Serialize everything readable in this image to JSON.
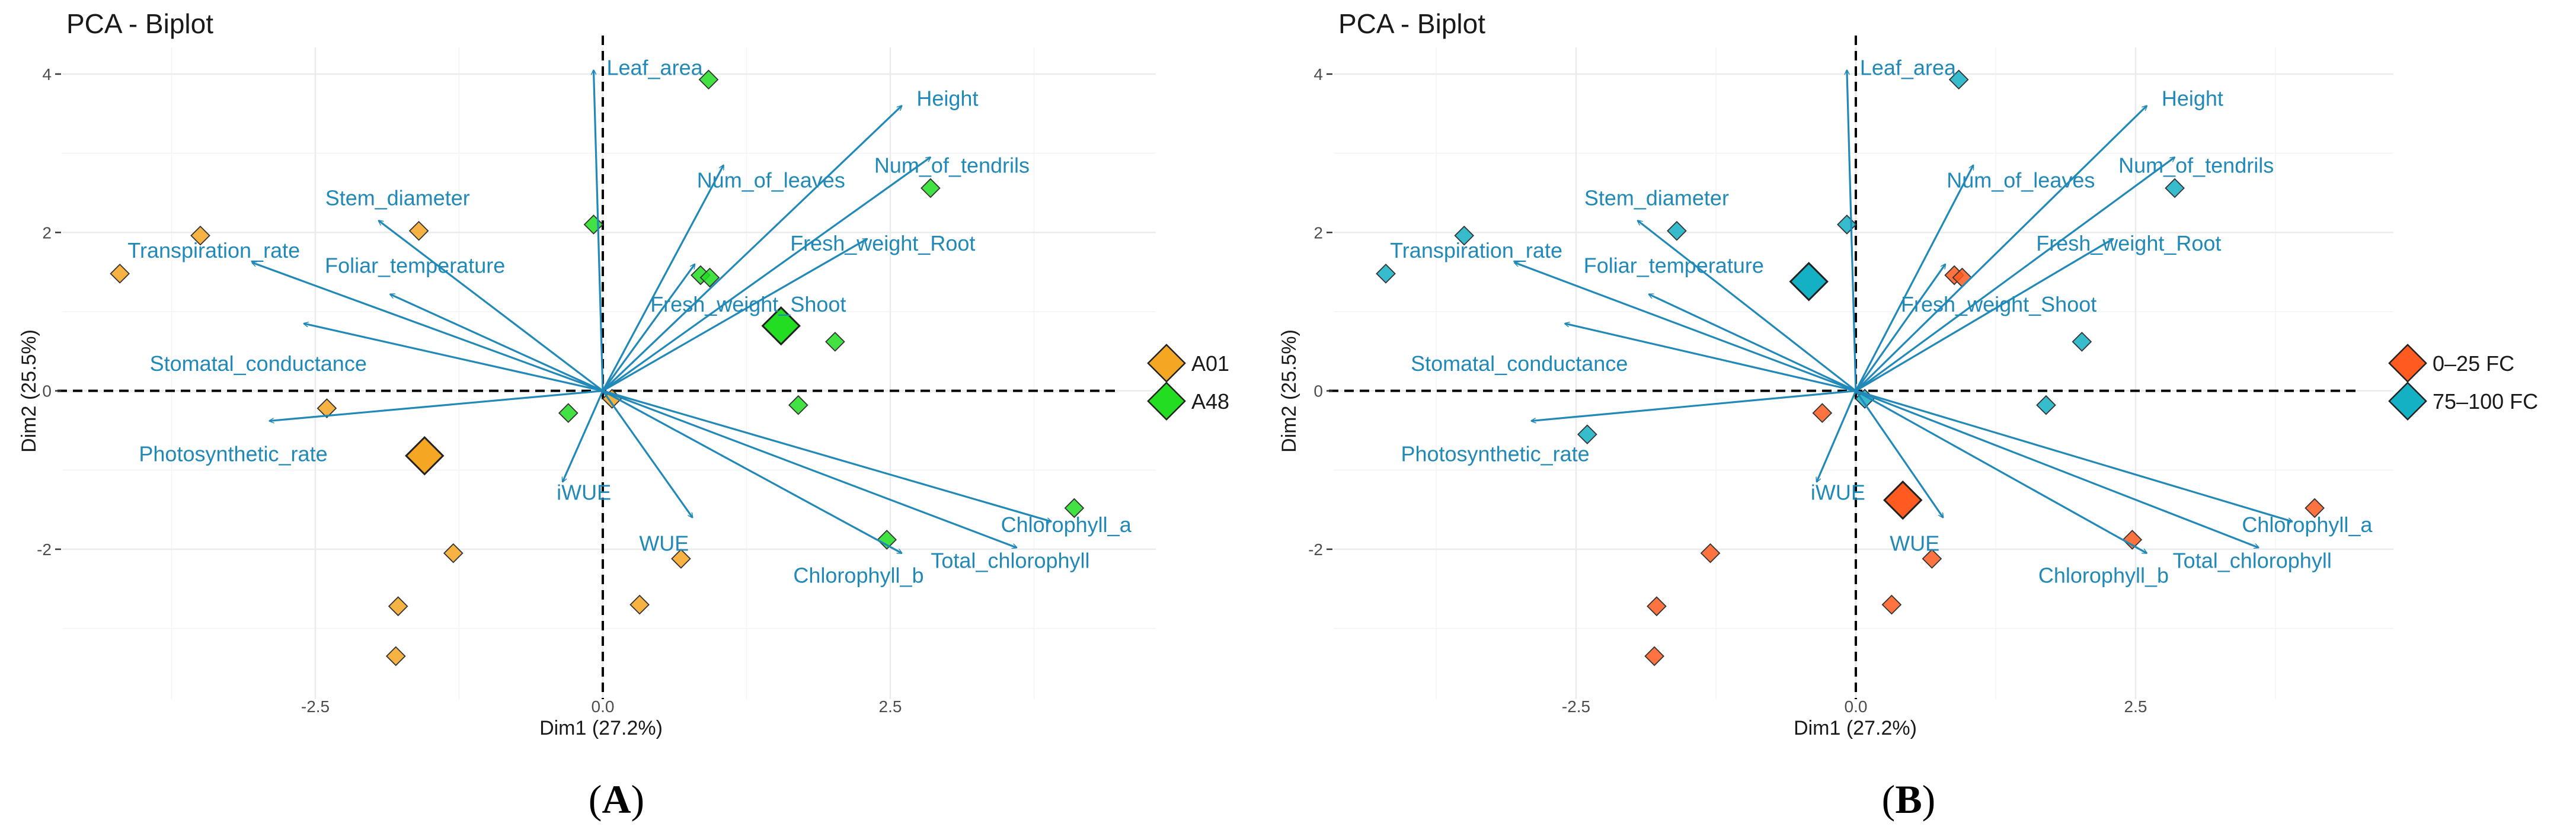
{
  "colors": {
    "vector": "#2189b8",
    "grid": "#ebebeb",
    "axis_dash": "#000000",
    "A01": "#f5a623",
    "A48": "#22dd22",
    "dry": "#ff5a1f",
    "wet": "#14b0c4"
  },
  "variables": [
    "Leaf_area",
    "Height",
    "Num_of_leaves",
    "Num_of_tendrils",
    "Fresh_weight_Shoot",
    "Fresh_weight_Root",
    "Stem_diameter",
    "Transpiration_rate",
    "Foliar_temperature",
    "Stomatal_conductance",
    "Photosynthetic_rate",
    "iWUE",
    "WUE",
    "Chlorophyll_a",
    "Chlorophyll_b",
    "Total_chlorophyll"
  ],
  "chart_data": [
    {
      "type": "scatter",
      "title": "PCA - Biplot",
      "panel_label": "A",
      "xlabel": "Dim1 (27.2%)",
      "ylabel": "Dim2 (25.5%)",
      "xlim": [
        -4.7,
        4.4
      ],
      "ylim": [
        -3.7,
        4.2
      ],
      "xticks": [
        -2.5,
        0.0,
        2.5
      ],
      "xtick_labels": [
        "-2.5",
        "0.0",
        "2.5"
      ],
      "yticks": [
        -2,
        0,
        2,
        4
      ],
      "ytick_labels": [
        "-2",
        "0",
        "2",
        "4"
      ],
      "grid": true,
      "legend_position": "right",
      "legend": [
        {
          "label": "A01",
          "color": "#f5a623"
        },
        {
          "label": "A48",
          "color": "#22dd22"
        }
      ],
      "centroids": [
        {
          "group": "A01",
          "x": -1.55,
          "y": -0.82
        },
        {
          "group": "A48",
          "x": 1.55,
          "y": 0.82
        }
      ],
      "points": [
        {
          "x": -4.2,
          "y": 1.48,
          "group": "A01"
        },
        {
          "x": -3.5,
          "y": 1.96,
          "group": "A01"
        },
        {
          "x": -1.6,
          "y": 2.02,
          "group": "A01"
        },
        {
          "x": -2.4,
          "y": -0.22,
          "group": "A01"
        },
        {
          "x": -1.3,
          "y": -2.05,
          "group": "A01"
        },
        {
          "x": -1.78,
          "y": -2.72,
          "group": "A01"
        },
        {
          "x": -1.8,
          "y": -3.35,
          "group": "A01"
        },
        {
          "x": 0.32,
          "y": -2.7,
          "group": "A01"
        },
        {
          "x": 0.68,
          "y": -2.12,
          "group": "A01"
        },
        {
          "x": 0.08,
          "y": -0.1,
          "group": "A01"
        },
        {
          "x": 0.92,
          "y": 3.93,
          "group": "A48"
        },
        {
          "x": -0.08,
          "y": 2.1,
          "group": "A48"
        },
        {
          "x": 0.85,
          "y": 1.46,
          "group": "A48"
        },
        {
          "x": 0.93,
          "y": 1.43,
          "group": "A48"
        },
        {
          "x": 2.02,
          "y": 0.62,
          "group": "A48"
        },
        {
          "x": 2.85,
          "y": 2.56,
          "group": "A48"
        },
        {
          "x": 1.7,
          "y": -0.18,
          "group": "A48"
        },
        {
          "x": -0.3,
          "y": -0.28,
          "group": "A48"
        },
        {
          "x": 2.47,
          "y": -1.88,
          "group": "A48"
        },
        {
          "x": 4.1,
          "y": -1.48,
          "group": "A48"
        }
      ],
      "vectors": [
        {
          "name": "Leaf_area",
          "x": -0.08,
          "y": 4.05
        },
        {
          "name": "Height",
          "x": 2.6,
          "y": 3.6
        },
        {
          "name": "Num_of_leaves",
          "x": 1.05,
          "y": 2.85
        },
        {
          "name": "Num_of_tendrils",
          "x": 2.85,
          "y": 2.95
        },
        {
          "name": "Fresh_weight_Shoot",
          "x": 0.8,
          "y": 1.6
        },
        {
          "name": "Fresh_weight_Root",
          "x": 2.3,
          "y": 1.92
        },
        {
          "name": "Stem_diameter",
          "x": -1.95,
          "y": 2.15
        },
        {
          "name": "Transpiration_rate",
          "x": -3.05,
          "y": 1.62
        },
        {
          "name": "Foliar_temperature",
          "x": -1.85,
          "y": 1.22
        },
        {
          "name": "Stomatal_conductance",
          "x": -2.6,
          "y": 0.85
        },
        {
          "name": "Photosynthetic_rate",
          "x": -2.9,
          "y": -0.38
        },
        {
          "name": "iWUE",
          "x": -0.35,
          "y": -1.15
        },
        {
          "name": "WUE",
          "x": 0.78,
          "y": -1.6
        },
        {
          "name": "Chlorophyll_a",
          "x": 3.9,
          "y": -1.65
        },
        {
          "name": "Chlorophyll_b",
          "x": 2.6,
          "y": -2.05
        },
        {
          "name": "Total_chlorophyll",
          "x": 3.6,
          "y": -1.98
        }
      ]
    },
    {
      "type": "scatter",
      "title": "PCA - Biplot",
      "panel_label": "B",
      "xlabel": "Dim1 (27.2%)",
      "ylabel": "Dim2 (25.5%)",
      "xlim": [
        -4.7,
        4.4
      ],
      "ylim": [
        -3.7,
        4.2
      ],
      "xticks": [
        -2.5,
        0.0,
        2.5
      ],
      "xtick_labels": [
        "-2.5",
        "0.0",
        "2.5"
      ],
      "yticks": [
        -2,
        0,
        2,
        4
      ],
      "ytick_labels": [
        "-2",
        "0",
        "2",
        "4"
      ],
      "grid": true,
      "legend_position": "right",
      "legend": [
        {
          "label": "0–25 FC",
          "color": "#ff5a1f"
        },
        {
          "label": "75–100 FC",
          "color": "#14b0c4"
        }
      ],
      "centroids": [
        {
          "group": "0–25 FC",
          "x": 0.42,
          "y": -1.38
        },
        {
          "group": "75–100 FC",
          "x": -0.42,
          "y": 1.38
        }
      ],
      "points": [
        {
          "x": -4.2,
          "y": 1.48,
          "group": "75–100 FC"
        },
        {
          "x": -3.5,
          "y": 1.96,
          "group": "75–100 FC"
        },
        {
          "x": -1.6,
          "y": 2.02,
          "group": "75–100 FC"
        },
        {
          "x": -2.4,
          "y": -0.55,
          "group": "75–100 FC"
        },
        {
          "x": -0.08,
          "y": 2.1,
          "group": "75–100 FC"
        },
        {
          "x": 0.92,
          "y": 3.93,
          "group": "75–100 FC"
        },
        {
          "x": 2.02,
          "y": 0.62,
          "group": "75–100 FC"
        },
        {
          "x": 2.85,
          "y": 2.56,
          "group": "75–100 FC"
        },
        {
          "x": 1.7,
          "y": -0.18,
          "group": "75–100 FC"
        },
        {
          "x": 0.08,
          "y": -0.1,
          "group": "75–100 FC"
        },
        {
          "x": 0.88,
          "y": 1.46,
          "group": "0–25 FC"
        },
        {
          "x": 0.95,
          "y": 1.43,
          "group": "0–25 FC"
        },
        {
          "x": -0.3,
          "y": -0.28,
          "group": "0–25 FC"
        },
        {
          "x": -1.3,
          "y": -2.05,
          "group": "0–25 FC"
        },
        {
          "x": -1.78,
          "y": -2.72,
          "group": "0–25 FC"
        },
        {
          "x": -1.8,
          "y": -3.35,
          "group": "0–25 FC"
        },
        {
          "x": 0.32,
          "y": -2.7,
          "group": "0–25 FC"
        },
        {
          "x": 0.68,
          "y": -2.12,
          "group": "0–25 FC"
        },
        {
          "x": 2.47,
          "y": -1.88,
          "group": "0–25 FC"
        },
        {
          "x": 4.1,
          "y": -1.48,
          "group": "0–25 FC"
        }
      ],
      "vectors": [
        {
          "name": "Leaf_area",
          "x": -0.08,
          "y": 4.05
        },
        {
          "name": "Height",
          "x": 2.6,
          "y": 3.6
        },
        {
          "name": "Num_of_leaves",
          "x": 1.05,
          "y": 2.85
        },
        {
          "name": "Num_of_tendrils",
          "x": 2.85,
          "y": 2.95
        },
        {
          "name": "Fresh_weight_Shoot",
          "x": 0.8,
          "y": 1.6
        },
        {
          "name": "Fresh_weight_Root",
          "x": 2.3,
          "y": 1.92
        },
        {
          "name": "Stem_diameter",
          "x": -1.95,
          "y": 2.15
        },
        {
          "name": "Transpiration_rate",
          "x": -3.05,
          "y": 1.62
        },
        {
          "name": "Foliar_temperature",
          "x": -1.85,
          "y": 1.22
        },
        {
          "name": "Stomatal_conductance",
          "x": -2.6,
          "y": 0.85
        },
        {
          "name": "Photosynthetic_rate",
          "x": -2.9,
          "y": -0.38
        },
        {
          "name": "iWUE",
          "x": -0.35,
          "y": -1.15
        },
        {
          "name": "WUE",
          "x": 0.78,
          "y": -1.6
        },
        {
          "name": "Chlorophyll_a",
          "x": 3.9,
          "y": -1.65
        },
        {
          "name": "Chlorophyll_b",
          "x": 2.6,
          "y": -2.05
        },
        {
          "name": "Total_chlorophyll",
          "x": 3.6,
          "y": -1.98
        }
      ]
    }
  ]
}
